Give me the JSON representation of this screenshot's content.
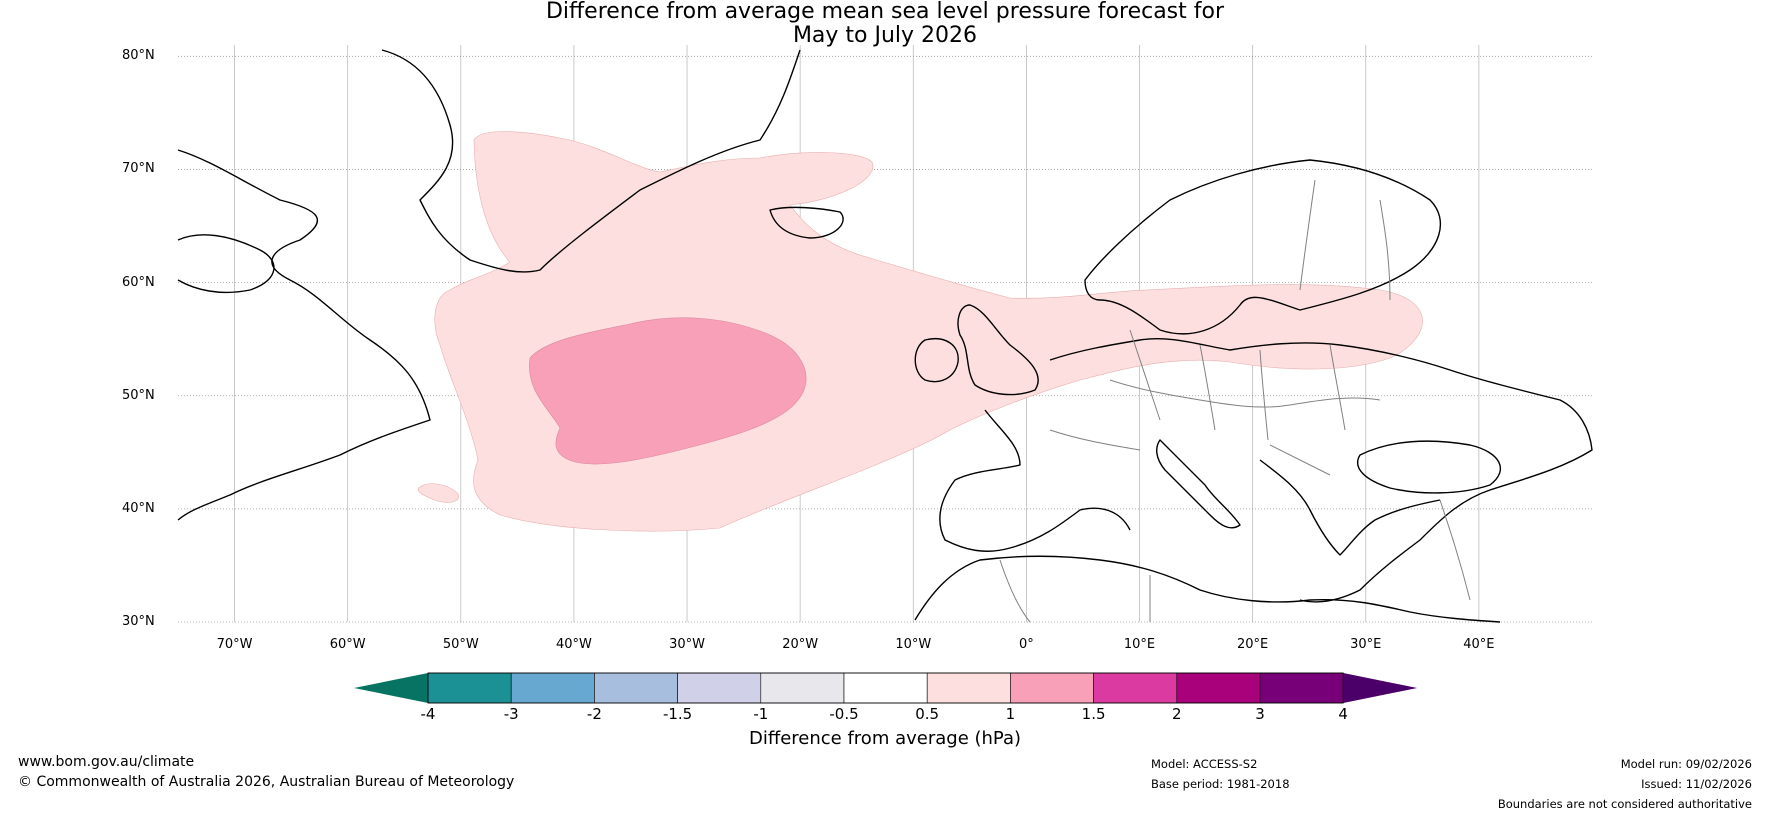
{
  "title": {
    "line1": "Difference from average mean sea level pressure forecast for",
    "line2": "May to July 2026"
  },
  "map": {
    "latitudes": [
      {
        "value": 80,
        "label": "80°N"
      },
      {
        "value": 70,
        "label": "70°N"
      },
      {
        "value": 60,
        "label": "60°N"
      },
      {
        "value": 50,
        "label": "50°N"
      },
      {
        "value": 40,
        "label": "40°N"
      },
      {
        "value": 30,
        "label": "30°N"
      }
    ],
    "longitudes": [
      {
        "value": -70,
        "label": "70°W"
      },
      {
        "value": -60,
        "label": "60°W"
      },
      {
        "value": -50,
        "label": "50°W"
      },
      {
        "value": -40,
        "label": "40°W"
      },
      {
        "value": -30,
        "label": "30°W"
      },
      {
        "value": -20,
        "label": "20°W"
      },
      {
        "value": -10,
        "label": "10°W"
      },
      {
        "value": 0,
        "label": "0°"
      },
      {
        "value": 10,
        "label": "10°E"
      },
      {
        "value": 20,
        "label": "20°E"
      },
      {
        "value": 30,
        "label": "30°E"
      },
      {
        "value": 40,
        "label": "40°E"
      }
    ],
    "lon_range": [
      -75,
      50
    ],
    "lat_range": [
      30,
      81
    ],
    "anomaly_colors": {
      "light": "#fddfdf",
      "medium": "#f8a0b8"
    }
  },
  "colorbar": {
    "label": "Difference from average (hPa)",
    "ticks": [
      "-4",
      "-3",
      "-2",
      "-1.5",
      "-1",
      "-0.5",
      "0.5",
      "1",
      "1.5",
      "2",
      "3",
      "4"
    ],
    "colors": [
      "#1b9196",
      "#66a8d0",
      "#a7bedf",
      "#d0d0e8",
      "#e8e7ec",
      "#ffffff",
      "#fddfdf",
      "#f8a0b8",
      "#db3aa0",
      "#a9007c",
      "#770078"
    ],
    "under_color": "#077362",
    "over_color": "#4a0068"
  },
  "footer": {
    "website": "www.bom.gov.au/climate",
    "copyright": "© Commonwealth of Australia 2026, Australian Bureau of Meteorology",
    "model": "Model: ACCESS-S2",
    "base_period": "Base period: 1981-2018",
    "model_run": "Model run: 09/02/2026",
    "issued": "Issued: 11/02/2026",
    "disclaimer": "Boundaries are not considered authoritative"
  }
}
